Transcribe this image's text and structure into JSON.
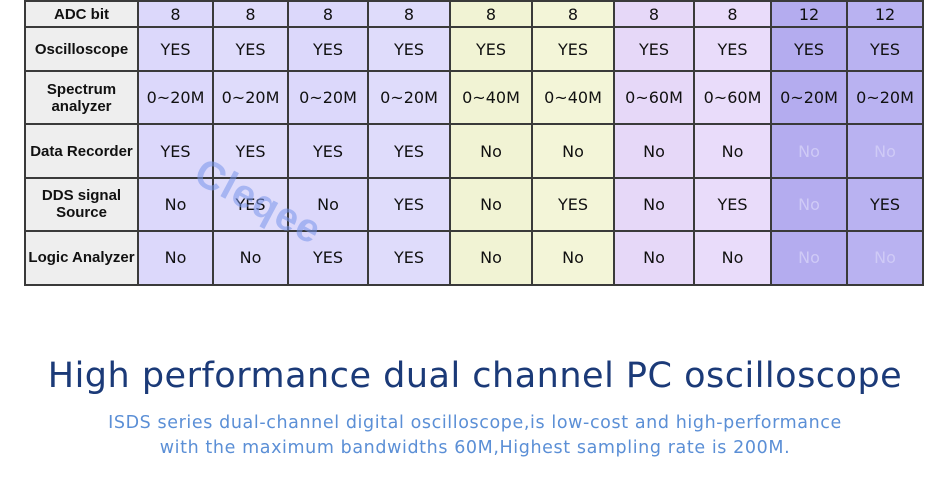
{
  "table": {
    "rows": [
      {
        "label": "ADC bit",
        "values": [
          "8",
          "8",
          "8",
          "8",
          "8",
          "8",
          "8",
          "8",
          "12",
          "12"
        ]
      },
      {
        "label": "Oscilloscope",
        "values": [
          "YES",
          "YES",
          "YES",
          "YES",
          "YES",
          "YES",
          "YES",
          "YES",
          "YES",
          "YES"
        ]
      },
      {
        "label": "Spectrum analyzer",
        "values": [
          "0~20M",
          "0~20M",
          "0~20M",
          "0~20M",
          "0~40M",
          "0~40M",
          "0~60M",
          "0~60M",
          "0~20M",
          "0~20M"
        ]
      },
      {
        "label": "Data Recorder",
        "values": [
          "YES",
          "YES",
          "YES",
          "YES",
          "No",
          "No",
          "No",
          "No",
          "No",
          "No"
        ]
      },
      {
        "label": "DDS signal Source",
        "values": [
          "No",
          "YES",
          "No",
          "YES",
          "No",
          "YES",
          "No",
          "YES",
          "No",
          "YES"
        ]
      },
      {
        "label": "Logic Analyzer",
        "values": [
          "No",
          "No",
          "YES",
          "YES",
          "No",
          "No",
          "No",
          "No",
          "No",
          "No"
        ]
      }
    ]
  },
  "watermark": "Cleqee",
  "headline": "High performance dual channel PC oscilloscope",
  "description": {
    "line1": "ISDS series dual-channel digital oscilloscope,is low-cost and high-performance",
    "line2": "with the maximum bandwidths 60M,Highest sampling rate is 200M."
  }
}
